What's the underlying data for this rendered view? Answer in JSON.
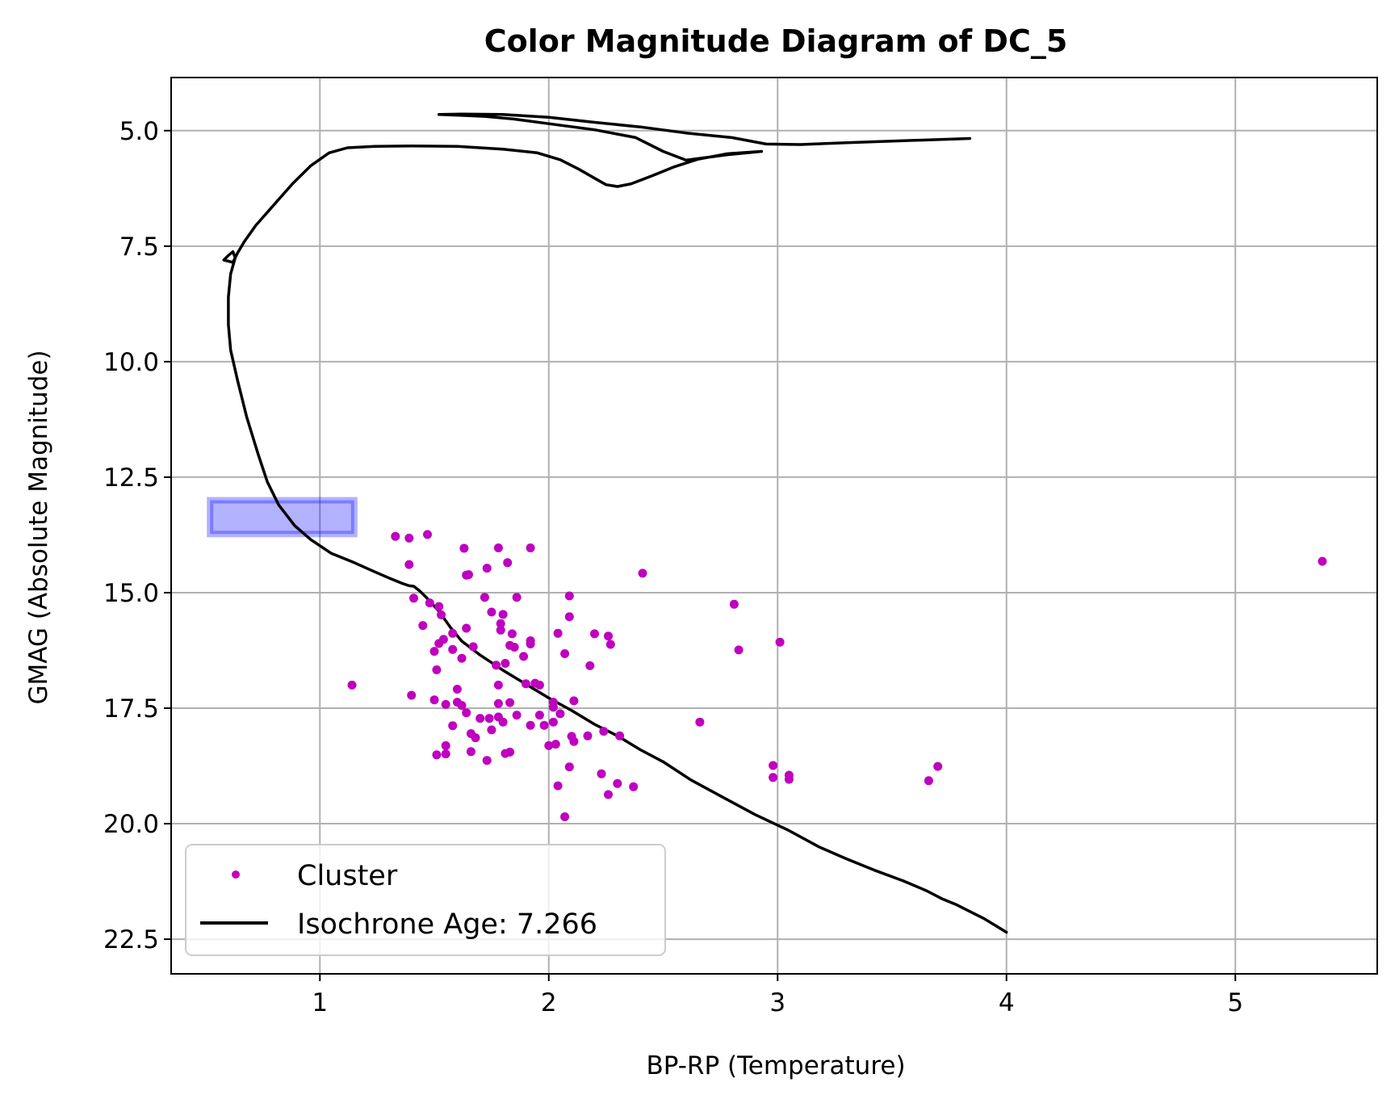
{
  "chart_data": {
    "type": "scatter",
    "title": "Color Magnitude Diagram of DC_5",
    "xlabel": "BP-RP (Temperature)",
    "ylabel": "GMAG (Absolute Magnitude)",
    "xlim": [
      0.35,
      5.62
    ],
    "ylim": [
      23.25,
      3.85
    ],
    "y_inverted": true,
    "grid": true,
    "legend_position": "lower-left",
    "x_ticks": [
      1,
      2,
      3,
      4,
      5
    ],
    "y_ticks": [
      5.0,
      7.5,
      10.0,
      12.5,
      15.0,
      17.5,
      20.0,
      22.5
    ],
    "x_tick_labels": [
      "1",
      "2",
      "3",
      "4",
      "5"
    ],
    "y_tick_labels": [
      "5.0",
      "7.5",
      "10.0",
      "12.5",
      "15.0",
      "17.5",
      "20.0",
      "22.5"
    ],
    "series": [
      {
        "name": "Cluster",
        "kind": "scatter",
        "color": "#bf00bf",
        "points": [
          [
            1.33,
            13.78
          ],
          [
            1.39,
            13.82
          ],
          [
            1.47,
            13.74
          ],
          [
            1.63,
            14.04
          ],
          [
            1.78,
            14.03
          ],
          [
            1.92,
            14.03
          ],
          [
            1.39,
            14.39
          ],
          [
            1.65,
            14.61
          ],
          [
            1.64,
            14.62
          ],
          [
            1.73,
            14.47
          ],
          [
            1.82,
            14.35
          ],
          [
            2.41,
            14.58
          ],
          [
            5.38,
            14.32
          ],
          [
            1.41,
            15.12
          ],
          [
            1.48,
            15.22
          ],
          [
            1.52,
            15.3
          ],
          [
            1.72,
            15.1
          ],
          [
            1.86,
            15.1
          ],
          [
            2.09,
            15.07
          ],
          [
            2.81,
            15.25
          ],
          [
            1.53,
            15.48
          ],
          [
            1.75,
            15.42
          ],
          [
            1.8,
            15.47
          ],
          [
            2.09,
            15.52
          ],
          [
            1.45,
            15.71
          ],
          [
            1.64,
            15.77
          ],
          [
            1.58,
            15.88
          ],
          [
            1.79,
            15.67
          ],
          [
            1.79,
            15.81
          ],
          [
            1.84,
            15.89
          ],
          [
            2.04,
            15.88
          ],
          [
            2.2,
            15.89
          ],
          [
            2.26,
            15.94
          ],
          [
            1.54,
            16.01
          ],
          [
            1.52,
            16.1
          ],
          [
            1.58,
            16.23
          ],
          [
            1.5,
            16.27
          ],
          [
            1.67,
            16.17
          ],
          [
            1.83,
            16.14
          ],
          [
            1.85,
            16.18
          ],
          [
            1.92,
            16.04
          ],
          [
            1.92,
            16.11
          ],
          [
            2.27,
            16.12
          ],
          [
            3.01,
            16.07
          ],
          [
            2.83,
            16.24
          ],
          [
            1.62,
            16.42
          ],
          [
            1.89,
            16.38
          ],
          [
            2.07,
            16.32
          ],
          [
            1.51,
            16.67
          ],
          [
            1.77,
            16.57
          ],
          [
            1.81,
            16.53
          ],
          [
            2.18,
            16.58
          ],
          [
            1.14,
            17.0
          ],
          [
            1.9,
            16.97
          ],
          [
            1.94,
            16.96
          ],
          [
            1.96,
            17.0
          ],
          [
            1.78,
            17.0
          ],
          [
            1.6,
            17.09
          ],
          [
            1.4,
            17.22
          ],
          [
            1.5,
            17.32
          ],
          [
            1.6,
            17.37
          ],
          [
            1.62,
            17.44
          ],
          [
            1.55,
            17.42
          ],
          [
            1.78,
            17.4
          ],
          [
            1.83,
            17.38
          ],
          [
            2.02,
            17.37
          ],
          [
            2.02,
            17.48
          ],
          [
            2.11,
            17.34
          ],
          [
            1.64,
            17.6
          ],
          [
            1.7,
            17.72
          ],
          [
            1.74,
            17.72
          ],
          [
            1.78,
            17.69
          ],
          [
            1.86,
            17.65
          ],
          [
            1.96,
            17.65
          ],
          [
            2.05,
            17.62
          ],
          [
            1.8,
            17.8
          ],
          [
            1.58,
            17.88
          ],
          [
            1.75,
            17.97
          ],
          [
            1.92,
            17.87
          ],
          [
            1.98,
            17.87
          ],
          [
            2.02,
            17.8
          ],
          [
            2.66,
            17.8
          ],
          [
            1.66,
            18.05
          ],
          [
            1.68,
            18.14
          ],
          [
            2.1,
            18.11
          ],
          [
            2.17,
            18.1
          ],
          [
            2.24,
            18.0
          ],
          [
            2.31,
            18.1
          ],
          [
            1.55,
            18.31
          ],
          [
            2.0,
            18.31
          ],
          [
            2.03,
            18.28
          ],
          [
            2.11,
            18.22
          ],
          [
            1.66,
            18.44
          ],
          [
            1.51,
            18.51
          ],
          [
            1.55,
            18.49
          ],
          [
            1.73,
            18.63
          ],
          [
            1.81,
            18.48
          ],
          [
            1.83,
            18.45
          ],
          [
            2.09,
            18.77
          ],
          [
            2.98,
            18.74
          ],
          [
            3.7,
            18.76
          ],
          [
            2.23,
            18.92
          ],
          [
            2.98,
            19.0
          ],
          [
            3.05,
            18.95
          ],
          [
            3.05,
            19.04
          ],
          [
            3.66,
            19.07
          ],
          [
            2.04,
            19.18
          ],
          [
            2.3,
            19.13
          ],
          [
            2.37,
            19.2
          ],
          [
            2.26,
            19.37
          ],
          [
            2.07,
            19.85
          ]
        ]
      },
      {
        "name": "Isochrone Age: 7.266",
        "kind": "line",
        "color": "#000000",
        "points": [
          [
            4.0,
            22.35
          ],
          [
            3.95,
            22.2
          ],
          [
            3.9,
            22.05
          ],
          [
            3.84,
            21.9
          ],
          [
            3.78,
            21.75
          ],
          [
            3.72,
            21.63
          ],
          [
            3.65,
            21.45
          ],
          [
            3.55,
            21.24
          ],
          [
            3.42,
            21.0
          ],
          [
            3.3,
            20.76
          ],
          [
            3.18,
            20.5
          ],
          [
            3.05,
            20.15
          ],
          [
            2.9,
            19.8
          ],
          [
            2.75,
            19.4
          ],
          [
            2.62,
            19.05
          ],
          [
            2.5,
            18.66
          ],
          [
            2.4,
            18.4
          ],
          [
            2.3,
            18.1
          ],
          [
            2.2,
            17.85
          ],
          [
            2.1,
            17.55
          ],
          [
            2.0,
            17.28
          ],
          [
            1.9,
            16.98
          ],
          [
            1.8,
            16.68
          ],
          [
            1.7,
            16.35
          ],
          [
            1.62,
            16.05
          ],
          [
            1.57,
            15.75
          ],
          [
            1.52,
            15.4
          ],
          [
            1.47,
            15.13
          ],
          [
            1.44,
            14.98
          ],
          [
            1.41,
            14.86
          ],
          [
            1.39,
            14.85
          ],
          [
            1.36,
            14.8
          ],
          [
            1.31,
            14.7
          ],
          [
            1.24,
            14.55
          ],
          [
            1.15,
            14.35
          ],
          [
            1.05,
            14.15
          ],
          [
            0.96,
            13.85
          ],
          [
            0.89,
            13.55
          ],
          [
            0.82,
            13.1
          ],
          [
            0.77,
            12.6
          ],
          [
            0.73,
            12.0
          ],
          [
            0.68,
            11.2
          ],
          [
            0.64,
            10.4
          ],
          [
            0.61,
            9.75
          ],
          [
            0.6,
            9.2
          ],
          [
            0.6,
            8.6
          ],
          [
            0.61,
            8.1
          ],
          [
            0.63,
            7.75
          ],
          [
            0.62,
            7.62
          ],
          [
            0.6,
            7.7
          ],
          [
            0.58,
            7.8
          ],
          [
            0.62,
            7.85
          ],
          [
            0.64,
            7.65
          ],
          [
            0.67,
            7.4
          ],
          [
            0.72,
            7.05
          ],
          [
            0.8,
            6.6
          ],
          [
            0.88,
            6.15
          ],
          [
            0.96,
            5.76
          ],
          [
            1.04,
            5.48
          ],
          [
            1.12,
            5.37
          ],
          [
            1.24,
            5.34
          ],
          [
            1.4,
            5.33
          ],
          [
            1.6,
            5.34
          ],
          [
            1.8,
            5.4
          ],
          [
            1.95,
            5.48
          ],
          [
            2.05,
            5.63
          ],
          [
            2.13,
            5.83
          ],
          [
            2.2,
            6.03
          ],
          [
            2.25,
            6.17
          ],
          [
            2.3,
            6.21
          ],
          [
            2.36,
            6.15
          ],
          [
            2.45,
            5.98
          ],
          [
            2.55,
            5.78
          ],
          [
            2.65,
            5.62
          ],
          [
            2.78,
            5.5
          ],
          [
            2.93,
            5.45
          ],
          [
            2.78,
            5.52
          ],
          [
            2.6,
            5.64
          ],
          [
            2.5,
            5.45
          ],
          [
            2.38,
            5.15
          ],
          [
            2.2,
            4.98
          ],
          [
            2.0,
            4.85
          ],
          [
            1.85,
            4.75
          ],
          [
            1.72,
            4.69
          ],
          [
            1.62,
            4.67
          ],
          [
            1.52,
            4.65
          ],
          [
            1.62,
            4.64
          ],
          [
            1.8,
            4.65
          ],
          [
            2.0,
            4.71
          ],
          [
            2.2,
            4.82
          ],
          [
            2.4,
            4.92
          ],
          [
            2.6,
            5.05
          ],
          [
            2.8,
            5.15
          ],
          [
            2.95,
            5.29
          ],
          [
            3.1,
            5.3
          ],
          [
            3.3,
            5.26
          ],
          [
            3.6,
            5.21
          ],
          [
            3.84,
            5.17
          ]
        ]
      }
    ],
    "highlight_box": {
      "color": "#0000ff",
      "x_range": [
        0.52,
        1.15
      ],
      "y_range": [
        13.0,
        13.73
      ]
    }
  }
}
